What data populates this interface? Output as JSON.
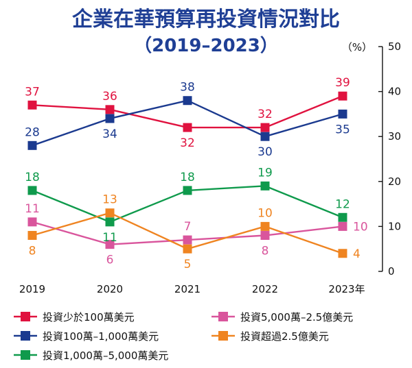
{
  "chart_data": {
    "type": "line",
    "title": "企業在華預算再投資情況對比",
    "subtitle": "（2019–2023）",
    "ylabel": "（%）",
    "categories": [
      "2019",
      "2020",
      "2021",
      "2022",
      "2023年"
    ],
    "ylim": [
      0,
      50
    ],
    "yticks": [
      0,
      10,
      20,
      30,
      40,
      50
    ],
    "grid": false,
    "legend_position": "bottom",
    "series": [
      {
        "name": "投資少於100萬美元",
        "color": "#e0123f",
        "values": [
          37,
          36,
          32,
          32,
          39
        ],
        "label_pos": [
          "above",
          "above",
          "below",
          "above",
          "above"
        ]
      },
      {
        "name": "投資100萬–1,000萬美元",
        "color": "#1b3a8f",
        "values": [
          28,
          34,
          38,
          30,
          35
        ],
        "label_pos": [
          "above",
          "below",
          "above",
          "below",
          "below"
        ]
      },
      {
        "name": "投資1,000萬–5,000萬美元",
        "color": "#0f9a4c",
        "values": [
          18,
          11,
          18,
          19,
          12
        ],
        "label_pos": [
          "above",
          "below",
          "above",
          "above",
          "above"
        ]
      },
      {
        "name": "投資5,000萬–2.5億美元",
        "color": "#d9559c",
        "values": [
          11,
          6,
          7,
          8,
          10
        ],
        "label_pos": [
          "above",
          "below",
          "above",
          "below",
          "right"
        ]
      },
      {
        "name": "投資超過2.5億美元",
        "color": "#ef8421",
        "values": [
          8,
          13,
          5,
          10,
          4
        ],
        "label_pos": [
          "below",
          "above",
          "below",
          "above",
          "right"
        ]
      }
    ]
  }
}
